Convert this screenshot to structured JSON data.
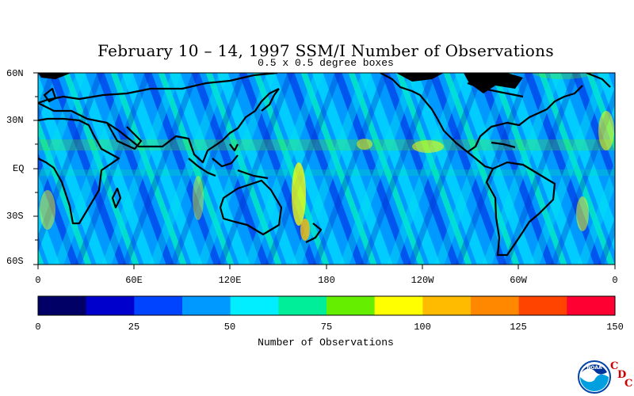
{
  "title": "February 10 – 14, 1997 SSM/I Number of Observations",
  "subtitle": "0.5 x 0.5 degree boxes",
  "map": {
    "lat_labels": [
      "60N",
      "30N",
      "EQ",
      "30S",
      "60S"
    ],
    "lon_labels": [
      "0",
      "60E",
      "120E",
      "180",
      "120W",
      "60W",
      "0"
    ]
  },
  "colorbar": {
    "title": "Number of Observations",
    "ticks": [
      "0",
      "25",
      "50",
      "75",
      "100",
      "125",
      "150"
    ],
    "colors": [
      "#000066",
      "#0000cc",
      "#0044ff",
      "#0099ff",
      "#00eeff",
      "#00ee99",
      "#66ee00",
      "#ffff00",
      "#ffbb00",
      "#ff8800",
      "#ff4400",
      "#ff0033"
    ]
  },
  "logo": {
    "letters": [
      "C",
      "D",
      "C"
    ],
    "badge_text": "NOAA"
  }
}
